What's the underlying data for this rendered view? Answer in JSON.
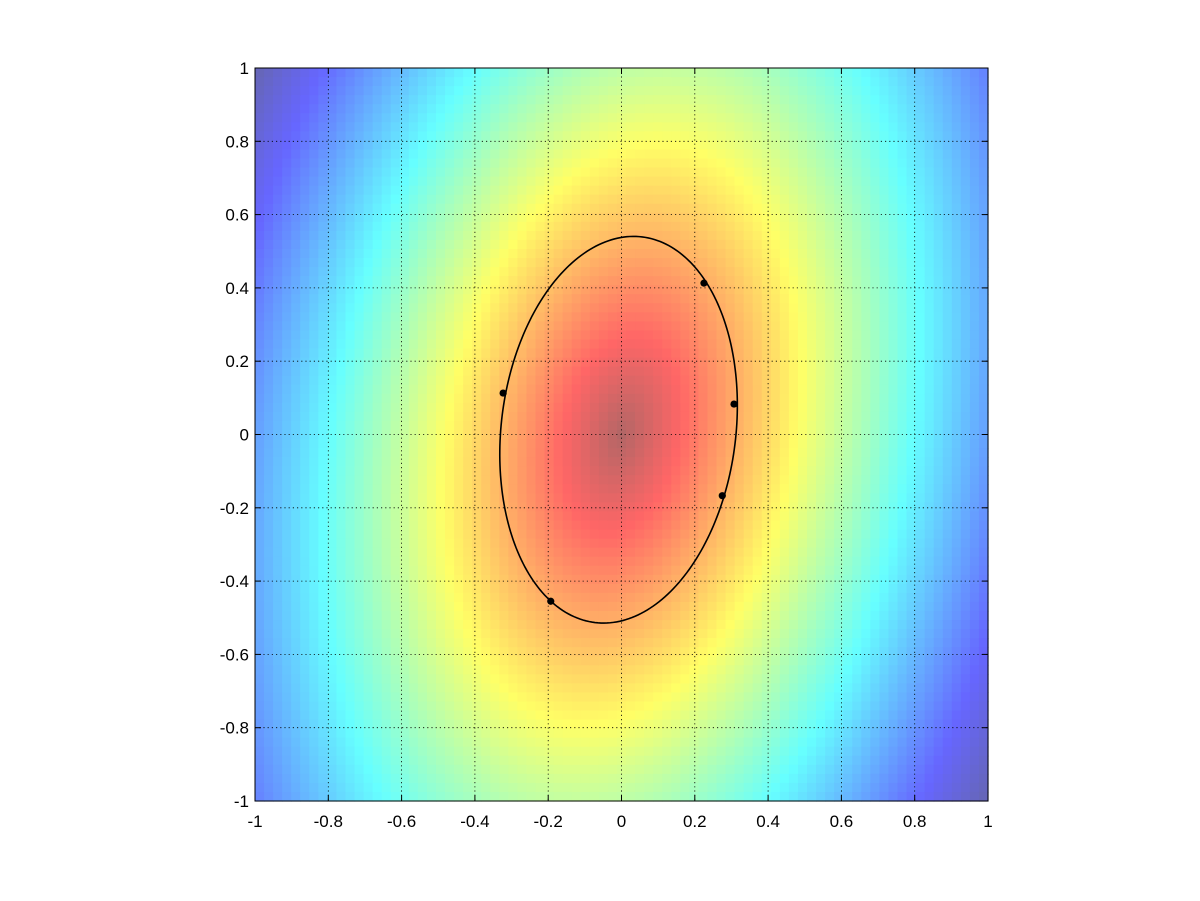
{
  "chart_data": {
    "type": "heatmap",
    "title": "",
    "xlabel": "",
    "ylabel": "",
    "xlim": [
      -1,
      1
    ],
    "ylim": [
      -1,
      1
    ],
    "grid": true,
    "grid_style": "dotted",
    "colormap": "jet",
    "colormap_alpha": 0.6,
    "color_field_grid_resolution": 81,
    "color_field_description_equation": "z = ((x - 0.125*y) / 0.32)^2 + (y / 0.53)^2",
    "x_ticks": [
      -1,
      -0.8,
      -0.6,
      -0.4,
      -0.2,
      0,
      0.2,
      0.4,
      0.6,
      0.8,
      1
    ],
    "x_tick_labels": [
      "-1",
      "-0.8",
      "-0.6",
      "-0.4",
      "-0.2",
      "0",
      "0.2",
      "0.4",
      "0.6",
      "0.8",
      "1"
    ],
    "y_ticks": [
      -1,
      -0.8,
      -0.6,
      -0.4,
      -0.2,
      0,
      0.2,
      0.4,
      0.6,
      0.8,
      1
    ],
    "y_tick_labels": [
      "-1",
      "-0.8",
      "-0.6",
      "-0.4",
      "-0.2",
      "0",
      "0.2",
      "0.4",
      "0.6",
      "0.8",
      "1"
    ],
    "ellipse": {
      "center": [
        -0.008,
        0.013
      ],
      "semi_major": 0.53,
      "semi_minor": 0.32,
      "tilt_deg": 83,
      "color": "#000000"
    },
    "points": [
      {
        "x": 0.225,
        "y": 0.413
      },
      {
        "x": -0.323,
        "y": 0.113
      },
      {
        "x": 0.307,
        "y": 0.083
      },
      {
        "x": 0.275,
        "y": -0.167
      },
      {
        "x": -0.193,
        "y": -0.455
      }
    ],
    "point_color": "#000000"
  }
}
